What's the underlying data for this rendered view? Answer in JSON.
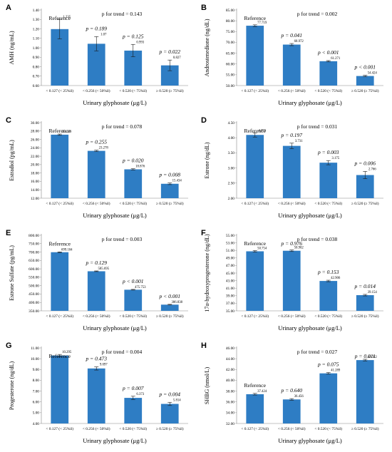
{
  "figure": {
    "panels": [
      {
        "label": "A",
        "trend_text": "p for trend = 0.143",
        "chart_data": {
          "type": "bar",
          "categories": [
            "< 0.127 (< 25%il)",
            "< 0.256 (< 50%il)",
            "< 0.520 (< 75%il)",
            "≥ 0.520 (≥ 75%il)"
          ],
          "values": [
            1.235,
            1.07,
            0.993,
            0.827
          ],
          "errors": [
            0.11,
            0.08,
            0.07,
            0.06
          ],
          "value_labels": [
            "1.235",
            "1.07",
            "0.993",
            "0.827"
          ],
          "annotations": [
            "Reference",
            "p = 0.189",
            "p = 0.125",
            "p = 0.022"
          ],
          "xlabel": "Urinary glyphosate (μg/L)",
          "ylabel": "AMH (ng/mL)",
          "ylim": [
            0.6,
            1.45
          ],
          "yticks": [
            "0.60",
            "0.70",
            "0.80",
            "0.90",
            "1.00",
            "1.10",
            "1.20",
            "1.30",
            "1.40"
          ],
          "grid": false,
          "bar_color": "#2e7dc4"
        }
      },
      {
        "label": "B",
        "trend_text": "p for trend = 0.002",
        "chart_data": {
          "type": "bar",
          "categories": [
            "< 0.127 (< 25%il)",
            "< 0.256 (< 50%il)",
            "< 0.520 (< 75%il)",
            "≥ 0.520 (≥ 75%il)"
          ],
          "values": [
            77.719,
            68.972,
            61.271,
            54.424
          ],
          "errors": [
            0.4,
            0.5,
            0.3,
            0.3
          ],
          "value_labels": [
            "77.719",
            "68.972",
            "61.271",
            "54.424"
          ],
          "annotations": [
            "Reference",
            "p = 0.041",
            "p < 0.001",
            "p < 0.001"
          ],
          "xlabel": "Urinary glyphosate (μg/L)",
          "ylabel": "Androstenedione (ng/dL)",
          "ylim": [
            50,
            85
          ],
          "yticks": [
            "50.00",
            "55.00",
            "60.00",
            "65.00",
            "70.00",
            "75.00",
            "80.00",
            "85.00"
          ],
          "grid": false,
          "bar_color": "#2e7dc4"
        }
      },
      {
        "label": "C",
        "trend_text": "p for trend = 0.078",
        "chart_data": {
          "type": "bar",
          "categories": [
            "< 0.127 (< 25%il)",
            "< 0.256 (< 50%il)",
            "< 0.520 (< 75%il)",
            "≥ 0.520 (≥ 75%il)"
          ],
          "values": [
            27.129,
            23.278,
            18.876,
            15.434
          ],
          "errors": [
            0.15,
            0.15,
            0.15,
            0.2
          ],
          "value_labels": [
            "27.129",
            "23.278",
            "18.876",
            "15.434"
          ],
          "annotations": [
            "Reference",
            "p = 0.255",
            "p = 0.020",
            "p = 0.008"
          ],
          "xlabel": "Urinary glyphosate (μg/L)",
          "ylabel": "Estradiol (pg/mL)",
          "ylim": [
            12,
            30
          ],
          "yticks": [
            "12.00",
            "14.00",
            "16.00",
            "18.00",
            "20.00",
            "22.00",
            "24.00",
            "26.00",
            "28.00",
            "30.00"
          ],
          "grid": false,
          "bar_color": "#2e7dc4"
        }
      },
      {
        "label": "D",
        "trend_text": "p for trend = 0.031",
        "chart_data": {
          "type": "bar",
          "categories": [
            "< 0.127 (< 25%il)",
            "< 0.256 (< 50%il)",
            "< 0.520 (< 75%il)",
            "≥ 0.520 (≥ 75%il)"
          ],
          "values": [
            4.093,
            3.731,
            3.175,
            2.766
          ],
          "errors": [
            0.07,
            0.09,
            0.07,
            0.12
          ],
          "value_labels": [
            "4.093",
            "3.731",
            "3.175",
            "2.766"
          ],
          "annotations": [
            "Reference",
            "p = 0.197",
            "p = 0.003",
            "p = 0.006"
          ],
          "xlabel": "Urinary glyphosate (μg/L)",
          "ylabel": "Estrone (ng/dL)",
          "ylim": [
            2,
            4.5
          ],
          "yticks": [
            "2.00",
            "2.50",
            "3.00",
            "3.50",
            "4.00",
            "4.50"
          ],
          "grid": false,
          "bar_color": "#2e7dc4"
        }
      },
      {
        "label": "E",
        "trend_text": "p for trend = 0.003",
        "chart_data": {
          "type": "bar",
          "categories": [
            "< 0.127 (< 25%il)",
            "< 0.256 (< 50%il)",
            "< 0.520 (< 75%il)",
            "≥ 0.520 (≥ 75%il)"
          ],
          "values": [
            699.104,
            585.695,
            475.753,
            386.838
          ],
          "errors": [
            2,
            2,
            2,
            2
          ],
          "value_labels": [
            "699.104",
            "585.695",
            "475.753",
            "386.838"
          ],
          "annotations": [
            "Reference",
            "p = 0.129",
            "p < 0.001",
            "p < 0.001"
          ],
          "xlabel": "Urinary glyphosate (μg/L)",
          "ylabel": "Estrone Sulfate (pg/mL)",
          "ylim": [
            350,
            800
          ],
          "yticks": [
            "350.00",
            "400.00",
            "450.00",
            "500.00",
            "550.00",
            "600.00",
            "650.00",
            "700.00",
            "750.00",
            "800.00"
          ],
          "grid": false,
          "bar_color": "#2e7dc4"
        }
      },
      {
        "label": "F",
        "trend_text": "p for trend = 0.038",
        "chart_data": {
          "type": "bar",
          "categories": [
            "< 0.127 (< 25%il)",
            "< 0.256 (< 50%il)",
            "< 0.520 (< 75%il)",
            "≥ 0.520 (≥ 75%il)"
          ],
          "values": [
            50.754,
            50.902,
            42.906,
            39.154
          ],
          "errors": [
            0.2,
            0.2,
            0.2,
            0.2
          ],
          "value_labels": [
            "50.754",
            "50.902",
            "42.906",
            "39.154"
          ],
          "annotations": [
            "Reference",
            "p = 0.976",
            "p = 0.153",
            "p = 0.014"
          ],
          "xlabel": "Urinary glyphosate (μg/L)",
          "ylabel": "17α-hydroxyprogesterone (ng/dL)",
          "ylim": [
            35,
            55
          ],
          "yticks": [
            "35.00",
            "37.00",
            "39.00",
            "41.00",
            "43.00",
            "45.00",
            "47.00",
            "49.00",
            "51.00",
            "53.00",
            "55.00"
          ],
          "grid": false,
          "bar_color": "#2e7dc4"
        }
      },
      {
        "label": "G",
        "trend_text": "p for trend = 0.004",
        "chart_data": {
          "type": "bar",
          "categories": [
            "< 0.127 (< 25%il)",
            "< 0.256 (< 50%il)",
            "< 0.520 (< 75%il)",
            "≥ 0.520 (≥ 75%il)"
          ],
          "values": [
            10.295,
            9.097,
            6.373,
            5.814
          ],
          "errors": [
            0.1,
            0.15,
            0.15,
            0.15
          ],
          "value_labels": [
            "10.295",
            "9.097",
            "6.373",
            "5.814"
          ],
          "annotations": [
            "Reference",
            "p = 0.473",
            "p = 0.007",
            "p = 0.004"
          ],
          "xlabel": "Urinary glyphosate (μg/L)",
          "ylabel": "Progesterone (ng/dL)",
          "ylim": [
            4,
            11
          ],
          "yticks": [
            "4.00",
            "5.00",
            "6.00",
            "7.00",
            "8.00",
            "9.00",
            "10.00",
            "11.00"
          ],
          "grid": false,
          "bar_color": "#2e7dc4"
        }
      },
      {
        "label": "H",
        "trend_text": "p for trend = 0.027",
        "chart_data": {
          "type": "bar",
          "categories": [
            "< 0.127 (< 25%il)",
            "< 0.256 (< 50%il)",
            "< 0.520 (< 75%il)",
            "≥ 0.520 (≥ 75%il)"
          ],
          "values": [
            37.424,
            36.456,
            41.289,
            43.742
          ],
          "errors": [
            0.15,
            0.15,
            0.15,
            0.15
          ],
          "value_labels": [
            "37.424",
            "36.456",
            "41.289",
            "43.742"
          ],
          "annotations": [
            "Reference",
            "p = 0.640",
            "p = 0.075",
            "p = 0.011"
          ],
          "xlabel": "Urinary glyphosate (μg/L)",
          "ylabel": "SHBG (nmol/L)",
          "ylim": [
            32,
            46
          ],
          "yticks": [
            "32.00",
            "34.00",
            "36.00",
            "38.00",
            "40.00",
            "42.00",
            "44.00",
            "46.00"
          ],
          "grid": false,
          "bar_color": "#2e7dc4"
        }
      }
    ]
  }
}
